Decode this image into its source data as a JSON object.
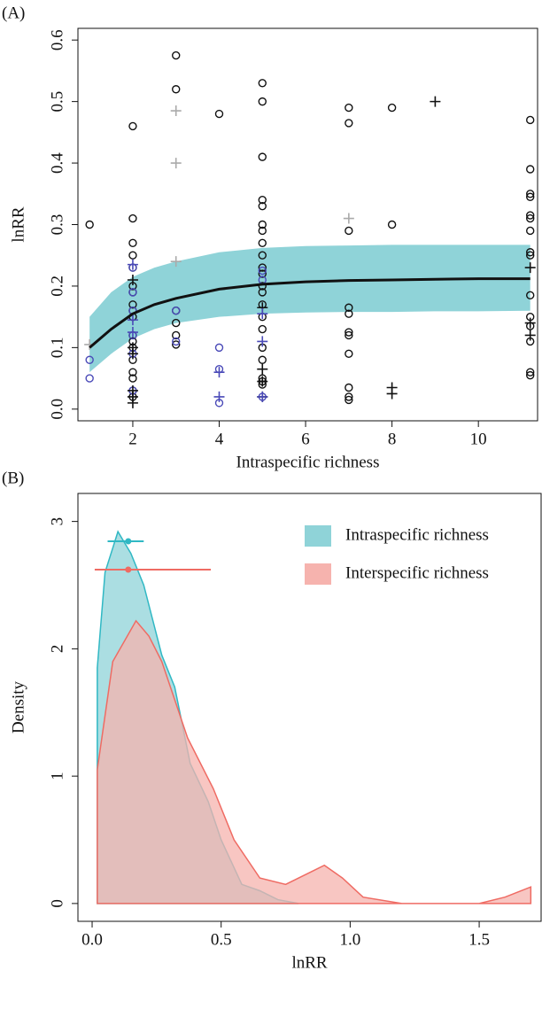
{
  "chart_data": [
    {
      "type": "scatter",
      "panel_label": "(A)",
      "x_label": "Intraspecific richness",
      "y_label": "lnRR",
      "xlim": [
        0.73,
        11.37
      ],
      "ylim": [
        -0.019,
        0.619
      ],
      "xticks": [
        2,
        4,
        6,
        8,
        10
      ],
      "yticks": [
        {
          "value": 0,
          "label": "0.0"
        },
        0.1,
        0.2,
        0.3,
        0.4,
        0.5,
        0.6
      ],
      "band": {
        "color": "#8fd3d8",
        "x": [
          1,
          1.5,
          2,
          2.5,
          3,
          4,
          5,
          6,
          7,
          8,
          9,
          10,
          11.2
        ],
        "lower": [
          0.06,
          0.09,
          0.115,
          0.13,
          0.14,
          0.15,
          0.155,
          0.157,
          0.158,
          0.158,
          0.159,
          0.159,
          0.16
        ],
        "upper": [
          0.15,
          0.19,
          0.215,
          0.23,
          0.24,
          0.255,
          0.262,
          0.265,
          0.266,
          0.267,
          0.267,
          0.267,
          0.267
        ],
        "fit": [
          0.1,
          0.13,
          0.155,
          0.17,
          0.18,
          0.195,
          0.203,
          0.207,
          0.209,
          0.21,
          0.211,
          0.212,
          0.212
        ]
      },
      "series": [
        {
          "marker": "circle",
          "color": "#111111",
          "x": [
            1,
            2,
            2,
            2,
            2,
            2,
            2,
            2,
            2,
            2,
            2,
            2,
            2,
            2,
            2,
            2,
            2,
            2,
            2,
            3,
            3,
            3,
            3,
            3,
            3,
            4,
            5,
            5,
            5,
            5,
            5,
            5,
            5,
            5,
            5,
            5,
            5,
            5,
            5,
            5,
            5,
            5,
            5,
            5,
            5,
            5,
            5,
            7,
            7,
            7,
            7,
            7,
            7,
            7,
            7,
            7,
            7,
            7,
            8,
            8,
            11.2,
            11.2,
            11.2,
            11.2,
            11.2,
            11.2,
            11.2,
            11.2,
            11.2,
            11.2,
            11.2,
            11.2,
            11.2,
            11.2,
            11.2
          ],
          "y": [
            0.3,
            0.46,
            0.31,
            0.27,
            0.25,
            0.23,
            0.2,
            0.19,
            0.17,
            0.16,
            0.15,
            0.12,
            0.11,
            0.1,
            0.08,
            0.06,
            0.05,
            0.03,
            0.02,
            0.575,
            0.52,
            0.16,
            0.14,
            0.12,
            0.105,
            0.48,
            0.53,
            0.5,
            0.41,
            0.34,
            0.33,
            0.3,
            0.29,
            0.27,
            0.25,
            0.23,
            0.22,
            0.2,
            0.19,
            0.17,
            0.15,
            0.13,
            0.1,
            0.08,
            0.05,
            0.045,
            0.04,
            0.49,
            0.465,
            0.29,
            0.165,
            0.155,
            0.125,
            0.12,
            0.09,
            0.035,
            0.02,
            0.015,
            0.49,
            0.3,
            0.47,
            0.39,
            0.35,
            0.345,
            0.315,
            0.31,
            0.29,
            0.255,
            0.25,
            0.185,
            0.15,
            0.135,
            0.11,
            0.06,
            0.055
          ]
        },
        {
          "marker": "circle",
          "color": "#4a4ab8",
          "x": [
            1,
            1,
            2,
            2,
            2,
            2,
            2,
            2,
            3,
            3,
            4,
            4,
            4,
            5,
            5,
            5
          ],
          "y": [
            0.08,
            0.05,
            0.23,
            0.19,
            0.16,
            0.12,
            0.09,
            0.03,
            0.16,
            0.11,
            0.1,
            0.065,
            0.01,
            0.225,
            0.21,
            0.02
          ]
        },
        {
          "marker": "plus",
          "color": "#111111",
          "x": [
            2,
            2,
            2,
            2,
            2,
            2,
            5,
            5,
            5,
            5,
            8,
            8,
            9,
            11.2,
            11.2,
            11.2
          ],
          "y": [
            0.21,
            0.1,
            0.09,
            0.03,
            0.02,
            0.01,
            0.165,
            0.065,
            0.045,
            0.02,
            0.035,
            0.025,
            0.5,
            0.23,
            0.14,
            0.12
          ]
        },
        {
          "marker": "plus",
          "color": "#aaaaaa",
          "x": [
            1,
            3,
            3,
            3,
            7
          ],
          "y": [
            0.105,
            0.485,
            0.4,
            0.24,
            0.31
          ]
        },
        {
          "marker": "plus",
          "color": "#4a4ab8",
          "x": [
            2,
            2,
            2,
            4,
            4,
            5,
            5,
            5
          ],
          "y": [
            0.235,
            0.145,
            0.125,
            0.06,
            0.02,
            0.155,
            0.11,
            0.02
          ]
        }
      ]
    },
    {
      "type": "density",
      "panel_label": "(B)",
      "x_label": "lnRR",
      "y_label": "Density",
      "xlim": [
        -0.055,
        1.74
      ],
      "ylim": [
        -0.14,
        3.22
      ],
      "xticks": [
        {
          "value": 0,
          "label": "0.0"
        },
        0.5,
        {
          "value": 1,
          "label": "1.0"
        },
        1.5
      ],
      "yticks": [
        0,
        1,
        2,
        3
      ],
      "series": [
        {
          "name": "Intraspecific richness",
          "color": "#30b8c4",
          "fill": "#8fd3d8",
          "x": [
            0.02,
            0.02,
            0.05,
            0.1,
            0.15,
            0.2,
            0.27,
            0.32,
            0.38,
            0.45,
            0.5,
            0.58,
            0.65,
            0.72,
            0.8
          ],
          "y": [
            0,
            1.85,
            2.6,
            2.92,
            2.75,
            2.5,
            1.95,
            1.7,
            1.1,
            0.8,
            0.5,
            0.15,
            0.1,
            0.03,
            0
          ],
          "mean": 0.14,
          "low": 0.06,
          "high": 0.2
        },
        {
          "name": "Interspecific richness",
          "color": "#ef6b63",
          "fill": "#f6b3ae",
          "x": [
            0.02,
            0.02,
            0.08,
            0.17,
            0.22,
            0.27,
            0.37,
            0.47,
            0.55,
            0.65,
            0.75,
            0.85,
            0.9,
            0.97,
            1.05,
            1.2,
            1.5,
            1.6,
            1.7,
            1.7
          ],
          "y": [
            0,
            1.05,
            1.9,
            2.22,
            2.1,
            1.9,
            1.3,
            0.9,
            0.5,
            0.2,
            0.15,
            0.25,
            0.3,
            0.2,
            0.05,
            0,
            0,
            0.05,
            0.13,
            0
          ],
          "mean": 0.14,
          "low": 0.01,
          "high": 0.46
        }
      ]
    }
  ]
}
